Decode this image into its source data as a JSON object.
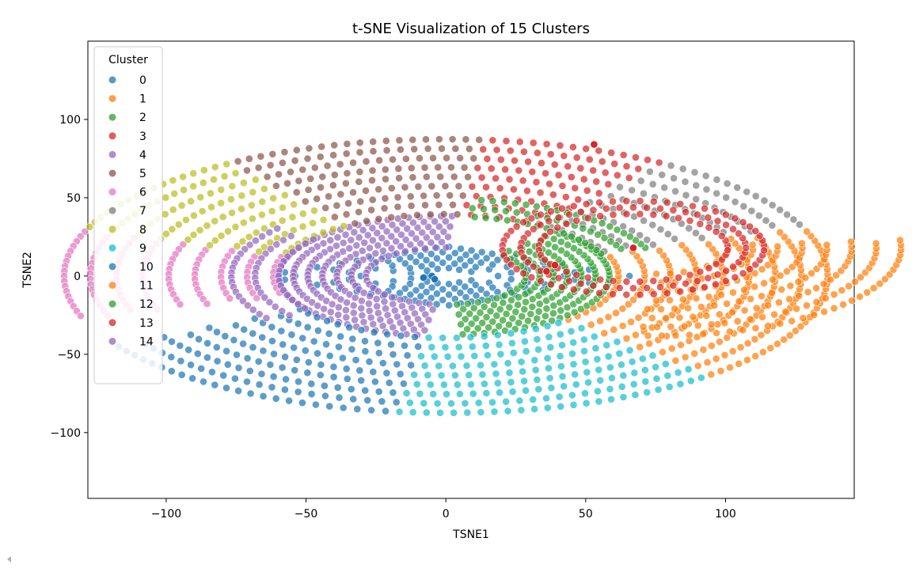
{
  "chart_data": {
    "type": "scatter",
    "title": "t-SNE Visualization of 15 Clusters",
    "xlabel": "TSNE1",
    "ylabel": "TSNE2",
    "xlim": [
      -128,
      146
    ],
    "ylim": [
      -142,
      150
    ],
    "xticks": [
      -100,
      -50,
      0,
      50,
      100
    ],
    "yticks": [
      -100,
      -50,
      0,
      50,
      100
    ],
    "xtick_labels": [
      "−100",
      "−50",
      "0",
      "50",
      "100"
    ],
    "ytick_labels": [
      "−100",
      "−50",
      "0",
      "50",
      "100"
    ],
    "grid": false,
    "legend": {
      "title": "Cluster",
      "placement": "top-left",
      "entries": [
        "0",
        "1",
        "2",
        "3",
        "4",
        "5",
        "6",
        "7",
        "8",
        "9",
        "10",
        "11",
        "12",
        "13",
        "14"
      ]
    },
    "colors": [
      "#1f77b4",
      "#ff7f0e",
      "#2ca02c",
      "#d62728",
      "#9467bd",
      "#8c564b",
      "#e377c2",
      "#7f7f7f",
      "#bcbd22",
      "#17becf",
      "#1f77b4",
      "#ff7f0e",
      "#2ca02c",
      "#d62728",
      "#9467bd"
    ],
    "series": [
      {
        "name": "0",
        "shape": "diamond",
        "cx": 0,
        "cy": 0,
        "r_min": 4,
        "r_max": 38,
        "a_start": 0,
        "a_end": 360,
        "rings": 6,
        "dense": 1.4
      },
      {
        "name": "1",
        "shape": "sector",
        "cx": 0,
        "cy": 0,
        "r_min": 95,
        "r_max": 210,
        "a_start": -47,
        "a_end": 20,
        "rings": 9,
        "dense": 1.0
      },
      {
        "name": "2",
        "shape": "sector",
        "cx": 0,
        "cy": 0,
        "r_min": 44,
        "r_max": 90,
        "a_start": -86,
        "a_end": 48,
        "rings": 7,
        "dense": 1.25
      },
      {
        "name": "3",
        "shape": "sector",
        "cx": 0,
        "cy": 0,
        "r_min": 95,
        "r_max": 210,
        "a_start": 55,
        "a_end": 84,
        "rings": 9,
        "dense": 1.0
      },
      {
        "name": "4",
        "shape": "sector",
        "cx": 0,
        "cy": 0,
        "r_min": 44,
        "r_max": 92,
        "a_start": 86,
        "a_end": 262,
        "rings": 7,
        "dense": 1.25
      },
      {
        "name": "5",
        "shape": "sector",
        "cx": 0,
        "cy": 0,
        "r_min": 95,
        "r_max": 210,
        "a_start": 84,
        "a_end": 124,
        "rings": 9,
        "dense": 1.0
      },
      {
        "name": "6",
        "shape": "sector",
        "cx": 0,
        "cy": 0,
        "r_min": 95,
        "r_max": 210,
        "a_start": 160,
        "a_end": 198,
        "rings": 9,
        "dense": 0.95
      },
      {
        "name": "7",
        "shape": "sector",
        "cx": 0,
        "cy": 0,
        "r_min": 95,
        "r_max": 210,
        "a_start": 21,
        "a_end": 55,
        "rings": 9,
        "dense": 0.9
      },
      {
        "name": "8",
        "shape": "sector",
        "cx": 0,
        "cy": 0,
        "r_min": 95,
        "r_max": 210,
        "a_start": 124,
        "a_end": 160,
        "rings": 9,
        "dense": 0.95
      },
      {
        "name": "9",
        "shape": "sector",
        "cx": 0,
        "cy": 0,
        "r_min": 95,
        "r_max": 210,
        "a_start": 262,
        "a_end": 313,
        "rings": 9,
        "dense": 1.0
      },
      {
        "name": "10",
        "shape": "sector",
        "cx": 0,
        "cy": 0,
        "r_min": 95,
        "r_max": 210,
        "a_start": 210,
        "a_end": 262,
        "rings": 9,
        "dense": 0.95
      },
      {
        "name": "11",
        "shape": "sector",
        "cx": 75,
        "cy": 18,
        "r_min": 40,
        "r_max": 135,
        "a_start": -95,
        "a_end": 5,
        "rings": 8,
        "dense": 1.0
      },
      {
        "name": "12",
        "shape": "sector",
        "cx": 0,
        "cy": 0,
        "r_min": 92,
        "r_max": 118,
        "a_start": 20,
        "a_end": 82,
        "rings": 3,
        "dense": 1.2
      },
      {
        "name": "13",
        "shape": "sector",
        "cx": 67,
        "cy": 18,
        "r_min": 52,
        "r_max": 72,
        "a_start": 0,
        "a_end": 360,
        "rings": 3,
        "dense": 1.0
      },
      {
        "name": "14",
        "shape": "sector",
        "cx": 0,
        "cy": 0,
        "r_min": 92,
        "r_max": 118,
        "a_start": 140,
        "a_end": 215,
        "rings": 3,
        "dense": 1.0
      }
    ],
    "highlight_points": [
      {
        "cluster": "3",
        "x": 67,
        "y": 18
      },
      {
        "cluster": "3",
        "x": 53,
        "y": 84
      },
      {
        "cluster": "3",
        "x": 36,
        "y": 3
      },
      {
        "cluster": "3",
        "x": 39,
        "y": 7
      },
      {
        "cluster": "0",
        "x": -5,
        "y": 0
      },
      {
        "cluster": "0",
        "x": -8,
        "y": -1
      },
      {
        "cluster": "0",
        "x": -4,
        "y": -2
      }
    ]
  }
}
